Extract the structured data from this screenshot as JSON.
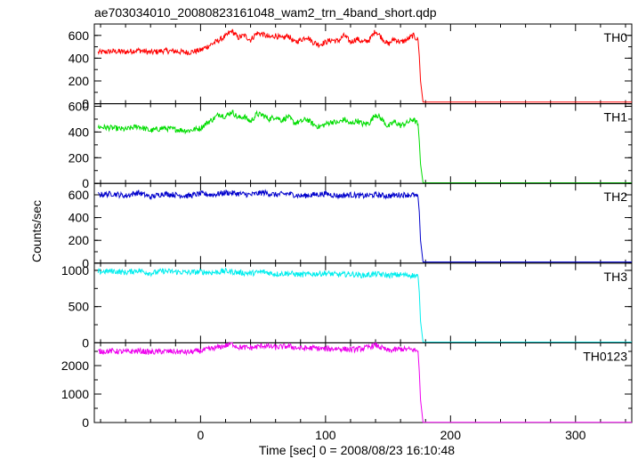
{
  "title": "ae703034010_20080823161048_wam2_trn_4band_short.qdp",
  "ylabel": "Counts/sec",
  "xlabel": "Time [sec] 0 = 2008/08/23 16:10:48",
  "chart_data": {
    "type": "line",
    "title": "ae703034010_20080823161048_wam2_trn_4band_short.qdp",
    "xlabel": "Time [sec] 0 = 2008/08/23 16:10:48",
    "ylabel": "Counts/sec",
    "xlim": [
      -85,
      345
    ],
    "xticks": [
      0,
      100,
      200,
      300
    ],
    "grid": false,
    "panels": [
      {
        "name": "TH0",
        "color": "#ff0000",
        "ylim": [
          0,
          700
        ],
        "yticks": [
          0,
          200,
          400,
          600
        ],
        "x": [
          -82,
          -70,
          -60,
          -50,
          -40,
          -30,
          -20,
          -10,
          0,
          5,
          10,
          15,
          20,
          25,
          30,
          35,
          40,
          45,
          50,
          55,
          60,
          65,
          70,
          75,
          80,
          85,
          90,
          95,
          100,
          105,
          110,
          115,
          120,
          125,
          130,
          135,
          140,
          145,
          150,
          155,
          160,
          165,
          170,
          174,
          175,
          176,
          178,
          200,
          250,
          300,
          345
        ],
        "y": [
          450,
          460,
          455,
          470,
          450,
          465,
          460,
          450,
          470,
          500,
          530,
          560,
          590,
          640,
          580,
          600,
          560,
          620,
          610,
          580,
          600,
          570,
          600,
          540,
          560,
          590,
          540,
          520,
          540,
          560,
          550,
          600,
          540,
          570,
          540,
          560,
          640,
          580,
          520,
          570,
          540,
          560,
          600,
          560,
          420,
          200,
          15,
          15,
          15,
          15,
          15
        ]
      },
      {
        "name": "TH1",
        "color": "#00dd00",
        "ylim": [
          0,
          620
        ],
        "yticks": [
          0,
          200,
          400,
          600
        ],
        "x": [
          -82,
          -70,
          -60,
          -50,
          -40,
          -30,
          -20,
          -10,
          0,
          5,
          10,
          15,
          20,
          25,
          30,
          35,
          40,
          45,
          50,
          55,
          60,
          65,
          70,
          75,
          80,
          85,
          90,
          95,
          100,
          105,
          110,
          115,
          120,
          125,
          130,
          135,
          140,
          145,
          150,
          155,
          160,
          165,
          170,
          174,
          175,
          176,
          178,
          200,
          250,
          300,
          345
        ],
        "y": [
          440,
          430,
          420,
          445,
          410,
          430,
          420,
          410,
          430,
          470,
          500,
          540,
          520,
          560,
          510,
          520,
          480,
          540,
          530,
          500,
          520,
          490,
          520,
          470,
          480,
          500,
          460,
          440,
          460,
          480,
          470,
          500,
          460,
          490,
          460,
          470,
          540,
          500,
          440,
          480,
          450,
          470,
          500,
          460,
          330,
          150,
          5,
          5,
          5,
          5,
          5
        ]
      },
      {
        "name": "TH2",
        "color": "#0000cc",
        "ylim": [
          0,
          700
        ],
        "yticks": [
          0,
          200,
          400,
          600
        ],
        "x": [
          -82,
          -70,
          -60,
          -50,
          -40,
          -30,
          -20,
          -10,
          0,
          10,
          20,
          30,
          40,
          50,
          60,
          70,
          80,
          90,
          100,
          110,
          120,
          130,
          140,
          150,
          160,
          170,
          174,
          175,
          176,
          178,
          200,
          250,
          300,
          345
        ],
        "y": [
          600,
          610,
          590,
          620,
          580,
          610,
          600,
          590,
          610,
          600,
          620,
          610,
          600,
          620,
          600,
          610,
          590,
          600,
          610,
          590,
          600,
          590,
          600,
          590,
          600,
          600,
          580,
          450,
          200,
          10,
          10,
          10,
          10,
          10
        ]
      },
      {
        "name": "TH3",
        "color": "#00eeee",
        "ylim": [
          0,
          1100
        ],
        "yticks": [
          0,
          500,
          1000
        ],
        "x": [
          -82,
          -70,
          -60,
          -50,
          -40,
          -30,
          -20,
          -10,
          0,
          10,
          20,
          30,
          40,
          50,
          60,
          70,
          80,
          90,
          100,
          110,
          120,
          130,
          140,
          150,
          160,
          170,
          174,
          175,
          176,
          178,
          200,
          250,
          300,
          345
        ],
        "y": [
          980,
          990,
          970,
          1000,
          960,
          990,
          980,
          970,
          980,
          970,
          990,
          970,
          960,
          980,
          950,
          960,
          940,
          950,
          960,
          940,
          950,
          930,
          950,
          930,
          940,
          930,
          920,
          700,
          300,
          10,
          10,
          10,
          10,
          10
        ]
      },
      {
        "name": "TH0123",
        "color": "#ee00ee",
        "ylim": [
          0,
          2800
        ],
        "yticks": [
          0,
          1000,
          2000
        ],
        "x": [
          -82,
          -70,
          -60,
          -50,
          -40,
          -30,
          -20,
          -10,
          0,
          10,
          20,
          25,
          30,
          40,
          50,
          60,
          70,
          80,
          90,
          100,
          110,
          120,
          130,
          140,
          150,
          160,
          170,
          174,
          175,
          176,
          178,
          200,
          250,
          300,
          345
        ],
        "y": [
          2500,
          2510,
          2480,
          2520,
          2470,
          2500,
          2490,
          2470,
          2520,
          2600,
          2700,
          2780,
          2650,
          2620,
          2700,
          2640,
          2680,
          2600,
          2620,
          2580,
          2600,
          2560,
          2600,
          2720,
          2520,
          2580,
          2560,
          2500,
          1800,
          800,
          10,
          10,
          10,
          10,
          10
        ]
      }
    ]
  }
}
